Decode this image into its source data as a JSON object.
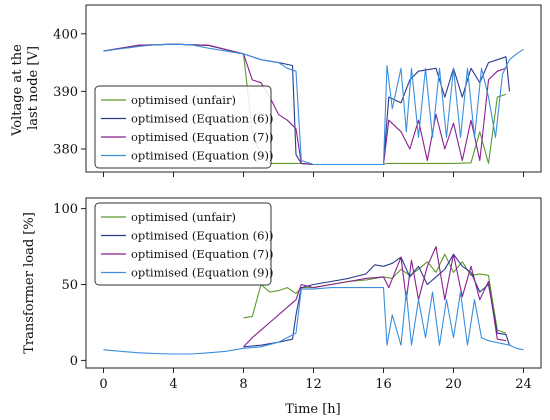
{
  "chart_data": [
    {
      "type": "line",
      "ylabel": "Voltage at the last node [V]",
      "ylabel_lines": [
        "Voltage at the",
        "last node [V]"
      ],
      "xlim": [
        -1,
        25
      ],
      "ylim": [
        376,
        405
      ],
      "yticks": [
        380,
        390,
        400
      ],
      "xticks": [
        0,
        4,
        8,
        12,
        16,
        20,
        24
      ],
      "show_x_tick_labels": false,
      "legend_position": "center-left",
      "series": [
        {
          "name": "optimised (unfair)",
          "color": "#5a9a2c",
          "x": [
            0,
            2,
            4,
            6,
            8,
            8.5,
            9,
            9.5,
            10,
            10.5,
            11,
            11.3,
            12,
            14,
            16,
            16.2,
            17,
            18,
            19,
            20,
            21,
            21.5,
            22,
            22.5,
            23
          ],
          "y": [
            397,
            398,
            398.2,
            398,
            396.5,
            383,
            379,
            377.5,
            377.5,
            377.5,
            377.5,
            377.5,
            377.3,
            377.3,
            377.3,
            377.5,
            377.5,
            377.5,
            377.5,
            377.5,
            377.6,
            383,
            377.5,
            389,
            389.5
          ]
        },
        {
          "name": "optimised (Equation (6))",
          "color": "#2b3a8f",
          "x": [
            0,
            2,
            4,
            6,
            8,
            9,
            10,
            10.8,
            11,
            11.3,
            12,
            14,
            16,
            16.3,
            17,
            17.5,
            18,
            19,
            19.5,
            20,
            20.5,
            21,
            21.5,
            22,
            22.5,
            23,
            23.2
          ],
          "y": [
            397,
            398,
            398.2,
            398,
            396.5,
            395.5,
            395,
            394.5,
            379,
            377.5,
            377.3,
            377.3,
            377.3,
            389,
            388,
            392,
            393.5,
            394,
            389,
            394,
            389,
            394,
            391.5,
            395,
            395.5,
            396,
            390
          ]
        },
        {
          "name": "optimised (Equation (7))",
          "color": "#8a1f8f",
          "x": [
            0,
            2,
            4,
            6,
            8,
            8.5,
            9,
            9.5,
            10,
            10.5,
            11,
            11.3,
            12,
            14,
            16,
            16.3,
            17,
            17.5,
            18,
            18.5,
            19,
            19.5,
            20,
            20.5,
            21,
            21.5,
            22,
            22.5,
            23
          ],
          "y": [
            397,
            398,
            398.2,
            398,
            396.5,
            392,
            391.5,
            389,
            386,
            385,
            383.5,
            377.5,
            377.3,
            377.3,
            377.3,
            385,
            383,
            380,
            385,
            378,
            386,
            380,
            384.5,
            378,
            385,
            378,
            392,
            393.5,
            394
          ]
        },
        {
          "name": "optimised (Equation (9))",
          "color": "#3b8fdc",
          "x": [
            0,
            2,
            3,
            4,
            5,
            6,
            7,
            8,
            9,
            10,
            10.5,
            11,
            11.3,
            12,
            14,
            16,
            16.2,
            16.5,
            17,
            17.3,
            17.6,
            18,
            18.4,
            18.8,
            19.2,
            19.6,
            20,
            20.4,
            20.8,
            21.2,
            21.6,
            22,
            22.4,
            22.8,
            23.2,
            23.6,
            24
          ],
          "y": [
            397,
            397.8,
            398.1,
            398.2,
            398.1,
            397.5,
            397,
            396.5,
            395.5,
            395,
            394,
            393.5,
            378,
            377.3,
            377.3,
            377.3,
            394.5,
            387,
            394,
            383,
            394,
            382,
            394,
            382,
            394,
            382,
            394,
            382,
            394,
            382,
            394,
            389,
            382,
            393,
            395.5,
            396.5,
            397.3
          ]
        }
      ]
    },
    {
      "type": "line",
      "xlabel": "Time [h]",
      "ylabel": "Transformer load [%]",
      "xlim": [
        -1,
        25
      ],
      "ylim": [
        -5,
        107
      ],
      "yticks": [
        0,
        50,
        100
      ],
      "xticks": [
        0,
        4,
        8,
        12,
        16,
        20,
        24
      ],
      "legend_position": "upper-left",
      "series": [
        {
          "name": "optimised (unfair)",
          "color": "#5a9a2c",
          "x": [
            8,
            8.5,
            9,
            9.5,
            10,
            10.5,
            11,
            11.3,
            12,
            13,
            14,
            15,
            16,
            16.5,
            17,
            17.5,
            18,
            18.5,
            19,
            19.5,
            20,
            20.5,
            21,
            21.5,
            22,
            22.5,
            23
          ],
          "y": [
            28,
            29,
            50,
            45,
            46,
            48,
            44,
            48,
            48,
            50,
            52,
            53,
            55,
            54,
            60,
            56,
            60,
            65,
            58,
            70,
            58,
            65,
            56,
            57,
            56,
            20,
            18
          ]
        },
        {
          "name": "optimised (Equation (6))",
          "color": "#2b3a8f",
          "x": [
            8,
            9,
            10,
            10.8,
            11,
            11.3,
            12,
            13,
            14,
            15,
            15.5,
            16,
            16.5,
            17,
            17.5,
            18,
            18.5,
            19,
            19.5,
            20,
            20.5,
            21,
            21.5,
            22,
            22.5,
            23,
            23.2
          ],
          "y": [
            9,
            10,
            12,
            14,
            30,
            48,
            50,
            52,
            54,
            57,
            63,
            62,
            64,
            68,
            55,
            62,
            50,
            55,
            60,
            70,
            62,
            58,
            45,
            50,
            18,
            17,
            10
          ]
        },
        {
          "name": "optimised (Equation (7))",
          "color": "#8a1f8f",
          "x": [
            8,
            8.5,
            9,
            9.5,
            10,
            10.5,
            11,
            11.3,
            12,
            13,
            14,
            15,
            16,
            16.3,
            17,
            17.3,
            17.6,
            18,
            18.5,
            19,
            19.5,
            20,
            20.5,
            21,
            21.5,
            22,
            22.5,
            23
          ],
          "y": [
            9,
            15,
            20,
            25,
            30,
            35,
            40,
            50,
            48,
            50,
            52,
            54,
            55,
            48,
            68,
            40,
            66,
            40,
            62,
            75,
            40,
            70,
            42,
            62,
            40,
            52,
            14,
            13
          ]
        },
        {
          "name": "optimised (Equation (9))",
          "color": "#3b8fdc",
          "x": [
            0,
            2,
            3,
            4,
            5,
            6,
            7,
            8,
            9,
            10,
            10.5,
            11,
            11.3,
            12,
            13,
            14,
            15,
            16,
            16.2,
            16.5,
            17,
            17.3,
            17.6,
            18,
            18.4,
            18.8,
            19.2,
            19.6,
            20,
            20.4,
            20.8,
            21.2,
            21.6,
            22,
            22.4,
            22.8,
            23.2,
            23.6,
            24
          ],
          "y": [
            7,
            5,
            4.5,
            4.2,
            4.2,
            5,
            6,
            8,
            9,
            12,
            15,
            18,
            47,
            47,
            48,
            48,
            48,
            48,
            10,
            30,
            10,
            45,
            10,
            40,
            15,
            45,
            10,
            40,
            15,
            45,
            10,
            40,
            15,
            13,
            12,
            11,
            10,
            8,
            7
          ]
        }
      ]
    }
  ]
}
